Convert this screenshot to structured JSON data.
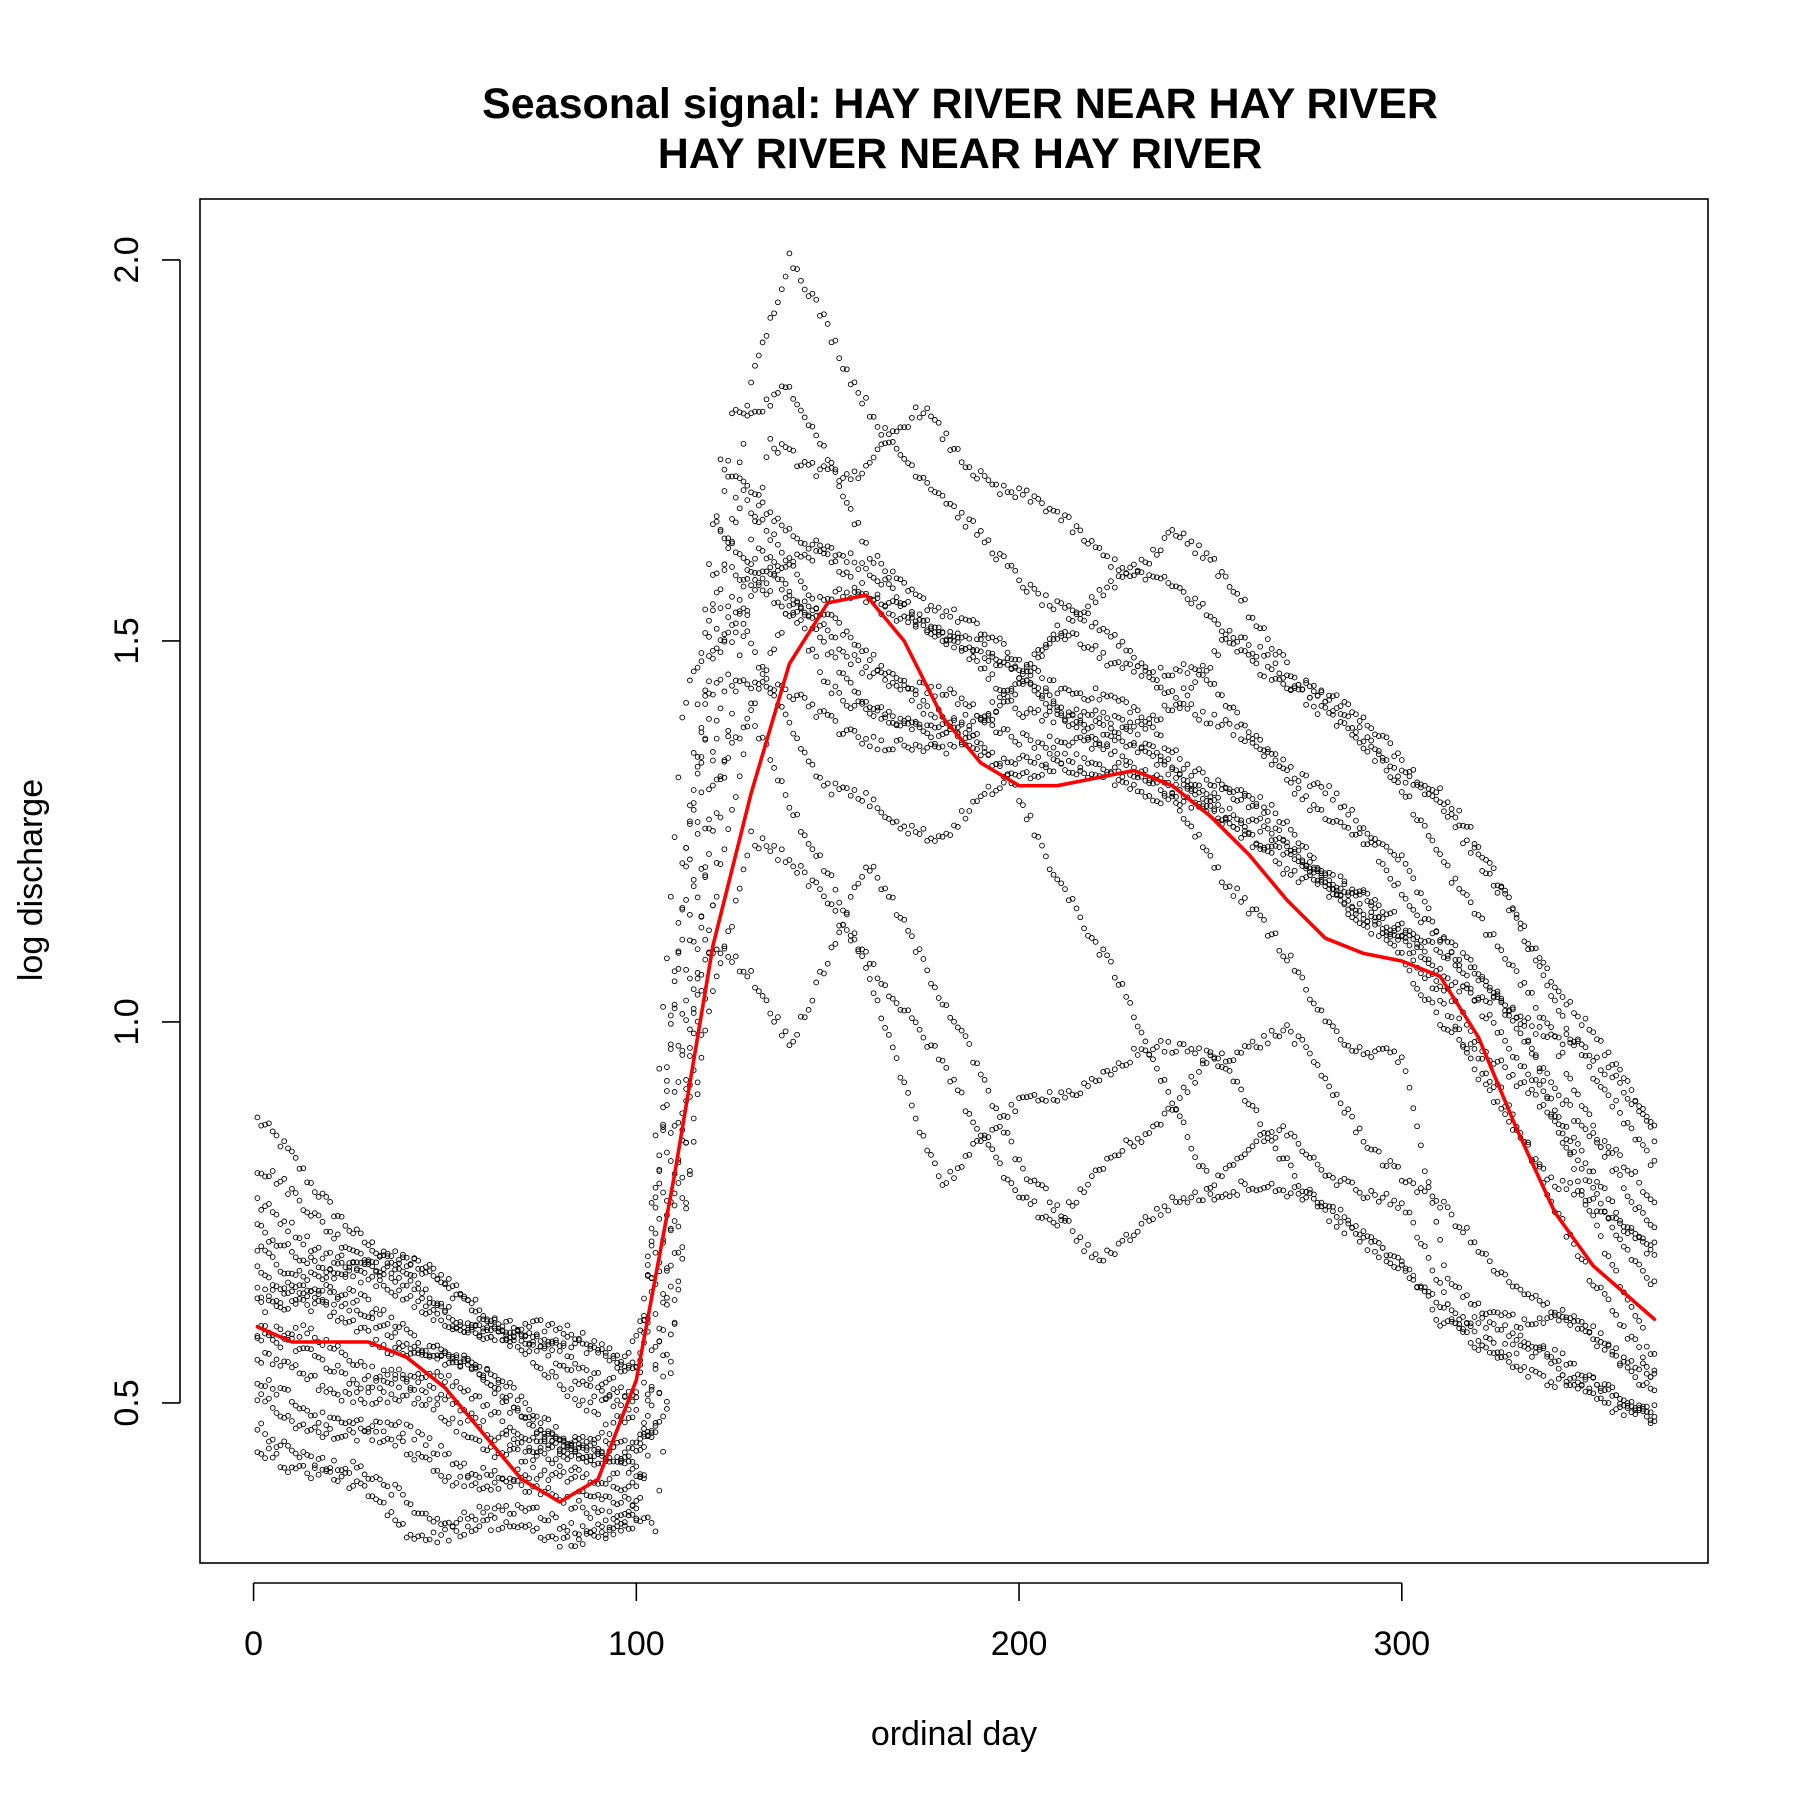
{
  "chart_data": {
    "type": "scatter",
    "title": [
      "Seasonal signal: HAY RIVER NEAR HAY RIVER",
      "HAY RIVER NEAR HAY RIVER"
    ],
    "xlabel": "ordinal day",
    "ylabel": "log discharge",
    "xlim": [
      -14,
      380
    ],
    "ylim": [
      0.29,
      2.08
    ],
    "x_ticks": [
      0,
      100,
      200,
      300
    ],
    "x_tick_labels": [
      "0",
      "100",
      "200",
      "300"
    ],
    "y_ticks": [
      0.5,
      1.0,
      1.5,
      2.0
    ],
    "y_tick_labels": [
      "0.5",
      "1.0",
      "1.5",
      "2.0"
    ],
    "grid": false,
    "legend": "none",
    "colors": {
      "points": "#000000",
      "smooth": "#ff0000",
      "axes": "#000000"
    },
    "series": [
      {
        "type": "scatter",
        "marker": "open-circle",
        "yearly_traces": [
          {
            "knots": [
              [
                1,
                0.87
              ],
              [
                15,
                0.78
              ],
              [
                40,
                0.68
              ],
              [
                80,
                0.57
              ],
              [
                100,
                0.55
              ],
              [
                110,
                0.8
              ],
              [
                122,
                1.72
              ],
              [
                150,
                1.62
              ],
              [
                190,
                1.48
              ],
              [
                240,
                1.32
              ],
              [
                280,
                1.18
              ],
              [
                330,
                1.02
              ],
              [
                366,
                0.88
              ]
            ]
          },
          {
            "knots": [
              [
                1,
                0.8
              ],
              [
                30,
                0.7
              ],
              [
                70,
                0.6
              ],
              [
                100,
                0.56
              ],
              [
                108,
                0.9
              ],
              [
                120,
                1.65
              ],
              [
                140,
                1.55
              ],
              [
                170,
                1.55
              ],
              [
                200,
                1.45
              ],
              [
                250,
                1.3
              ],
              [
                300,
                1.1
              ],
              [
                340,
                0.78
              ],
              [
                366,
                0.72
              ]
            ]
          },
          {
            "knots": [
              [
                1,
                0.75
              ],
              [
                30,
                0.68
              ],
              [
                70,
                0.58
              ],
              [
                100,
                0.52
              ],
              [
                112,
                1.1
              ],
              [
                125,
                1.8
              ],
              [
                140,
                1.84
              ],
              [
                160,
                1.62
              ],
              [
                190,
                1.5
              ],
              [
                230,
                1.4
              ],
              [
                270,
                1.25
              ],
              [
                310,
                1.05
              ],
              [
                366,
                0.7
              ]
            ]
          },
          {
            "knots": [
              [
                1,
                0.72
              ],
              [
                40,
                0.65
              ],
              [
                80,
                0.55
              ],
              [
                100,
                0.5
              ],
              [
                115,
                1.3
              ],
              [
                130,
                1.85
              ],
              [
                140,
                2.0
              ],
              [
                155,
                1.85
              ],
              [
                185,
                1.65
              ],
              [
                210,
                1.55
              ],
              [
                250,
                1.4
              ],
              [
                300,
                1.2
              ],
              [
                366,
                0.65
              ]
            ]
          },
          {
            "knots": [
              [
                1,
                0.7
              ],
              [
                50,
                0.62
              ],
              [
                90,
                0.5
              ],
              [
                102,
                0.6
              ],
              [
                112,
                1.4
              ],
              [
                128,
                1.7
              ],
              [
                150,
                1.5
              ],
              [
                180,
                1.42
              ],
              [
                220,
                1.35
              ],
              [
                260,
                1.28
              ],
              [
                300,
                1.12
              ],
              [
                330,
                1.0
              ],
              [
                366,
                0.55
              ]
            ]
          },
          {
            "knots": [
              [
                1,
                0.68
              ],
              [
                40,
                0.6
              ],
              [
                85,
                0.45
              ],
              [
                100,
                0.48
              ],
              [
                110,
                0.9
              ],
              [
                120,
                1.5
              ],
              [
                135,
                1.58
              ],
              [
                165,
                1.4
              ],
              [
                200,
                1.35
              ],
              [
                240,
                1.3
              ],
              [
                290,
                1.15
              ],
              [
                320,
                0.95
              ],
              [
                366,
                0.52
              ]
            ]
          },
          {
            "knots": [
              [
                1,
                0.66
              ],
              [
                45,
                0.58
              ],
              [
                90,
                0.42
              ],
              [
                105,
                0.45
              ],
              [
                118,
                1.2
              ],
              [
                132,
                1.62
              ],
              [
                150,
                1.45
              ],
              [
                180,
                1.35
              ],
              [
                210,
                1.5
              ],
              [
                245,
                1.45
              ],
              [
                280,
                1.3
              ],
              [
                310,
                1.12
              ],
              [
                366,
                0.75
              ]
            ]
          },
          {
            "knots": [
              [
                1,
                0.64
              ],
              [
                50,
                0.56
              ],
              [
                95,
                0.4
              ],
              [
                108,
                0.5
              ],
              [
                120,
                1.35
              ],
              [
                135,
                1.75
              ],
              [
                160,
                1.72
              ],
              [
                175,
                1.8
              ],
              [
                195,
                1.7
              ],
              [
                230,
                1.6
              ],
              [
                270,
                1.45
              ],
              [
                310,
                1.3
              ],
              [
                366,
                0.85
              ]
            ]
          },
          {
            "knots": [
              [
                1,
                0.6
              ],
              [
                40,
                0.54
              ],
              [
                80,
                0.45
              ],
              [
                100,
                0.42
              ],
              [
                110,
                0.7
              ],
              [
                118,
                1.1
              ],
              [
                130,
                1.05
              ],
              [
                140,
                0.98
              ],
              [
                160,
                1.2
              ],
              [
                185,
                1.0
              ],
              [
                200,
                0.8
              ],
              [
                220,
                0.7
              ],
              [
                260,
                0.8
              ],
              [
                300,
                0.7
              ],
              [
                310,
                0.6
              ],
              [
                366,
                0.48
              ]
            ]
          },
          {
            "knots": [
              [
                1,
                0.58
              ],
              [
                40,
                0.52
              ],
              [
                85,
                0.42
              ],
              [
                102,
                0.42
              ],
              [
                115,
                1.0
              ],
              [
                130,
                1.4
              ],
              [
                150,
                1.2
              ],
              [
                165,
                0.98
              ],
              [
                180,
                0.8
              ],
              [
                205,
                0.9
              ],
              [
                230,
                0.95
              ],
              [
                270,
                0.98
              ],
              [
                300,
                0.8
              ],
              [
                320,
                0.7
              ],
              [
                366,
                0.52
              ]
            ]
          },
          {
            "knots": [
              [
                1,
                0.55
              ],
              [
                40,
                0.5
              ],
              [
                85,
                0.4
              ],
              [
                100,
                0.4
              ],
              [
                112,
                1.2
              ],
              [
                125,
                1.55
              ],
              [
                150,
                1.3
              ],
              [
                180,
                1.25
              ],
              [
                210,
                1.35
              ],
              [
                240,
                1.3
              ],
              [
                280,
                1.0
              ],
              [
                300,
                0.95
              ],
              [
                312,
                0.65
              ],
              [
                366,
                0.55
              ]
            ]
          },
          {
            "knots": [
              [
                1,
                0.52
              ],
              [
                30,
                0.47
              ],
              [
                70,
                0.4
              ],
              [
                100,
                0.38
              ],
              [
                110,
                0.75
              ],
              [
                120,
                1.3
              ],
              [
                140,
                1.55
              ],
              [
                170,
                1.45
              ],
              [
                200,
                1.3
              ],
              [
                225,
                1.05
              ],
              [
                250,
                0.8
              ],
              [
                270,
                0.85
              ],
              [
                300,
                0.75
              ],
              [
                315,
                0.6
              ],
              [
                366,
                0.5
              ]
            ]
          },
          {
            "knots": [
              [
                1,
                0.5
              ],
              [
                30,
                0.45
              ],
              [
                70,
                0.38
              ],
              [
                100,
                0.36
              ],
              [
                112,
                0.95
              ],
              [
                125,
                1.6
              ],
              [
                150,
                1.6
              ],
              [
                175,
                1.52
              ],
              [
                200,
                1.42
              ],
              [
                230,
                1.38
              ],
              [
                255,
                1.5
              ],
              [
                285,
                1.4
              ],
              [
                320,
                1.15
              ],
              [
                366,
                0.72
              ]
            ]
          },
          {
            "knots": [
              [
                1,
                0.47
              ],
              [
                20,
                0.42
              ],
              [
                45,
                0.36
              ],
              [
                70,
                0.35
              ],
              [
                100,
                0.34
              ],
              [
                110,
                0.6
              ],
              [
                118,
                1.0
              ],
              [
                130,
                1.25
              ],
              [
                160,
                1.1
              ],
              [
                190,
                0.85
              ],
              [
                210,
                0.73
              ],
              [
                225,
                0.82
              ],
              [
                250,
                0.95
              ],
              [
                270,
                0.82
              ],
              [
                290,
                0.7
              ],
              [
                310,
                0.64
              ],
              [
                366,
                0.47
              ]
            ]
          },
          {
            "knots": [
              [
                1,
                0.45
              ],
              [
                20,
                0.4
              ],
              [
                40,
                0.34
              ],
              [
                60,
                0.33
              ],
              [
                80,
                0.33
              ],
              [
                105,
                0.33
              ],
              [
                112,
                0.7
              ],
              [
                125,
                1.45
              ],
              [
                150,
                1.4
              ],
              [
                175,
                1.35
              ],
              [
                200,
                1.45
              ],
              [
                240,
                1.65
              ],
              [
                275,
                1.45
              ],
              [
                310,
                1.3
              ],
              [
                366,
                0.8
              ]
            ]
          }
        ]
      },
      {
        "type": "line",
        "role": "smoothed seasonal signal",
        "x": [
          1,
          10,
          20,
          30,
          40,
          50,
          60,
          70,
          80,
          90,
          100,
          110,
          120,
          130,
          140,
          150,
          160,
          170,
          180,
          190,
          200,
          210,
          220,
          230,
          240,
          250,
          260,
          270,
          280,
          290,
          300,
          310,
          320,
          330,
          340,
          350,
          366
        ],
        "y": [
          0.6,
          0.58,
          0.58,
          0.58,
          0.56,
          0.52,
          0.46,
          0.4,
          0.37,
          0.4,
          0.53,
          0.8,
          1.1,
          1.3,
          1.47,
          1.55,
          1.56,
          1.5,
          1.4,
          1.34,
          1.31,
          1.31,
          1.32,
          1.33,
          1.31,
          1.27,
          1.22,
          1.16,
          1.11,
          1.09,
          1.08,
          1.06,
          0.98,
          0.86,
          0.75,
          0.68,
          0.61
        ]
      }
    ]
  }
}
